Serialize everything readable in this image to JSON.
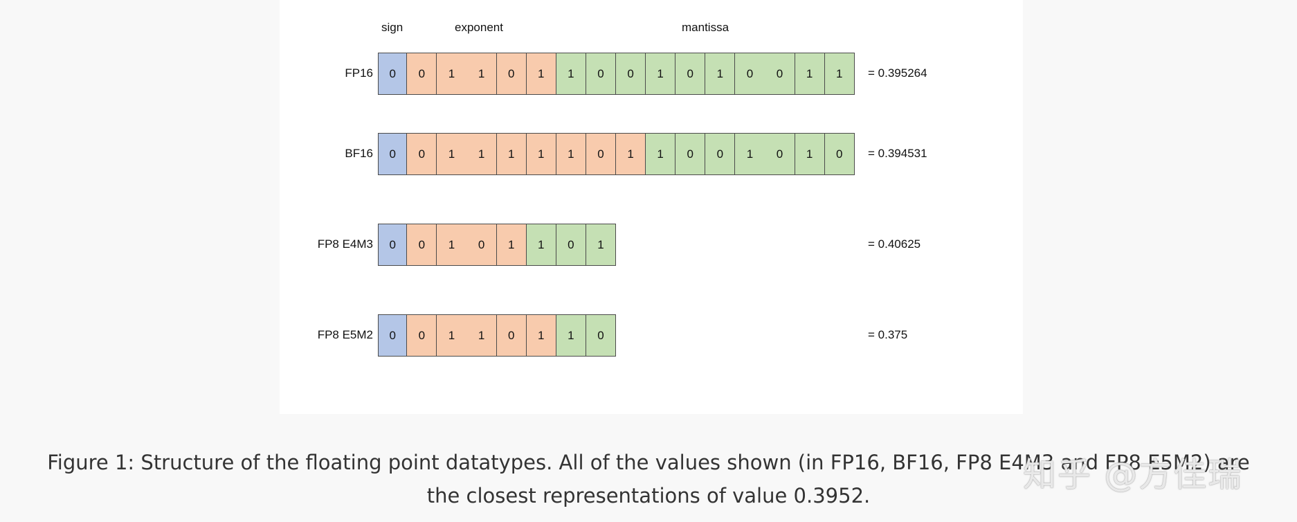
{
  "headers": {
    "sign": "sign",
    "exponent": "exponent",
    "mantissa": "mantissa"
  },
  "colors": {
    "sign": "#b4c6e7",
    "exponent": "#f8cbad",
    "mantissa": "#c5e0b4"
  },
  "rows": [
    {
      "label": "FP16",
      "bits": [
        "0",
        "0",
        "1",
        "1",
        "0",
        "1",
        "1",
        "0",
        "0",
        "1",
        "0",
        "1",
        "0",
        "0",
        "1",
        "1"
      ],
      "sign_bits": 1,
      "exponent_bits": 5,
      "mantissa_bits": 10,
      "value": "= 0.395264"
    },
    {
      "label": "BF16",
      "bits": [
        "0",
        "0",
        "1",
        "1",
        "1",
        "1",
        "1",
        "0",
        "1",
        "1",
        "0",
        "0",
        "1",
        "0",
        "1",
        "0"
      ],
      "sign_bits": 1,
      "exponent_bits": 8,
      "mantissa_bits": 7,
      "value": "= 0.394531"
    },
    {
      "label": "FP8 E4M3",
      "bits": [
        "0",
        "0",
        "1",
        "0",
        "1",
        "1",
        "0",
        "1"
      ],
      "sign_bits": 1,
      "exponent_bits": 4,
      "mantissa_bits": 3,
      "value": "= 0.40625"
    },
    {
      "label": "FP8 E5M2",
      "bits": [
        "0",
        "0",
        "1",
        "1",
        "0",
        "1",
        "1",
        "0"
      ],
      "sign_bits": 1,
      "exponent_bits": 5,
      "mantissa_bits": 2,
      "value": "= 0.375"
    }
  ],
  "caption": {
    "line1": "Figure 1: Structure of the floating point datatypes. All of the values shown (in FP16, BF16, FP8 E4M3 and FP8 E5M2) are",
    "line2": "the closest representations of value 0.3952."
  },
  "watermark": "知乎 @方佳瑞"
}
